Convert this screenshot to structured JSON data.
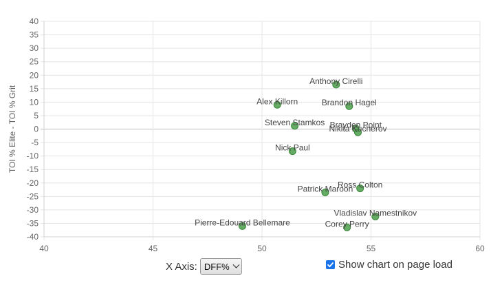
{
  "chart_data": {
    "type": "scatter",
    "title": "",
    "xlabel": "",
    "ylabel": "TOI % Elite - TOI % Grit",
    "xlim": [
      40,
      60
    ],
    "ylim": [
      -40,
      40
    ],
    "x_ticks": [
      40,
      45,
      50,
      55,
      60
    ],
    "y_ticks": [
      40,
      35,
      30,
      25,
      20,
      15,
      10,
      5,
      0,
      -5,
      -10,
      -15,
      -20,
      -25,
      -30,
      -35,
      -40
    ],
    "grid": true,
    "point_color": "#4a9e4a",
    "points": [
      {
        "label": "Anthony Cirelli",
        "x": 53.4,
        "y": 16.5
      },
      {
        "label": "Alex Killorn",
        "x": 50.7,
        "y": 9.0
      },
      {
        "label": "Brandon Hagel",
        "x": 54.0,
        "y": 8.5
      },
      {
        "label": "Steven Stamkos",
        "x": 51.5,
        "y": 1.2
      },
      {
        "label": "Brayden Point",
        "x": 54.3,
        "y": 0.2
      },
      {
        "label": "Nikita Kucherov",
        "x": 54.4,
        "y": -1.2
      },
      {
        "label": "Nick Paul",
        "x": 51.4,
        "y": -8.2
      },
      {
        "label": "Ross Colton",
        "x": 54.5,
        "y": -22.0
      },
      {
        "label": "Patrick Maroon",
        "x": 52.9,
        "y": -23.5
      },
      {
        "label": "Vladislav Namestnikov",
        "x": 55.2,
        "y": -32.5
      },
      {
        "label": "Pierre-Edouard Bellemare",
        "x": 49.1,
        "y": -36.0
      },
      {
        "label": "Corey Perry",
        "x": 53.9,
        "y": -36.5
      }
    ]
  },
  "controls": {
    "x_axis_label": "X Axis:",
    "x_axis_selected": "DFF%",
    "show_on_load_label": "Show chart on page load",
    "show_on_load_checked": true
  }
}
